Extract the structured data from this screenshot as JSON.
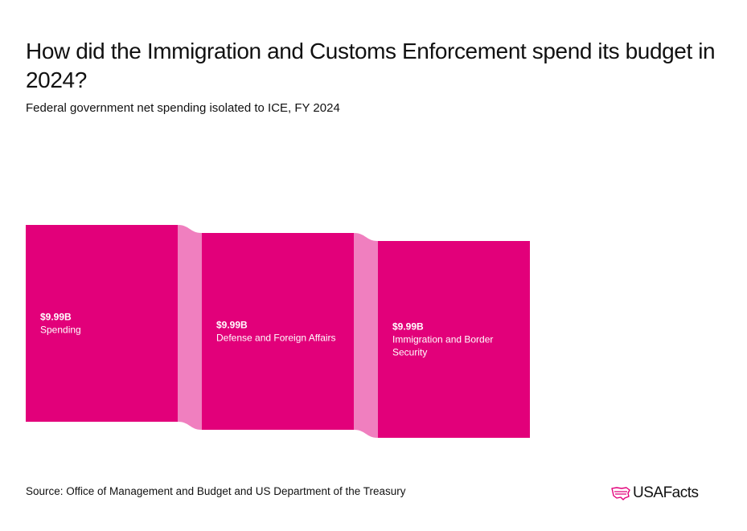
{
  "header": {
    "title": "How did the Immigration and Customs Enforcement spend its budget in 2024?",
    "subtitle": "Federal government net spending isolated to ICE, FY 2024"
  },
  "footer": {
    "source": "Source: Office of Management and Budget and US Department of the Treasury",
    "logo_text": "USAFacts"
  },
  "colors": {
    "node": "#e2007a",
    "link": "#f07fbf",
    "text": "#111111"
  },
  "chart_data": {
    "type": "sankey",
    "title": "How did the Immigration and Customs Enforcement spend its budget in 2024?",
    "subtitle": "Federal government net spending isolated to ICE, FY 2024",
    "unit": "billions USD",
    "nodes": [
      {
        "name": "Spending",
        "value": 9.99,
        "label_value": "$9.99B",
        "label_lines": [
          "Spending"
        ]
      },
      {
        "name": "Defense and Foreign Affairs",
        "value": 9.99,
        "label_value": "$9.99B",
        "label_lines": [
          "Defense and Foreign Affairs"
        ]
      },
      {
        "name": "Immigration and Border Security",
        "value": 9.99,
        "label_value": "$9.99B",
        "label_lines": [
          "Immigration and Border",
          "Security"
        ]
      }
    ],
    "links": [
      {
        "source": "Spending",
        "target": "Defense and Foreign Affairs",
        "value": 9.99
      },
      {
        "source": "Defense and Foreign Affairs",
        "target": "Immigration and Border Security",
        "value": 9.99
      }
    ]
  }
}
